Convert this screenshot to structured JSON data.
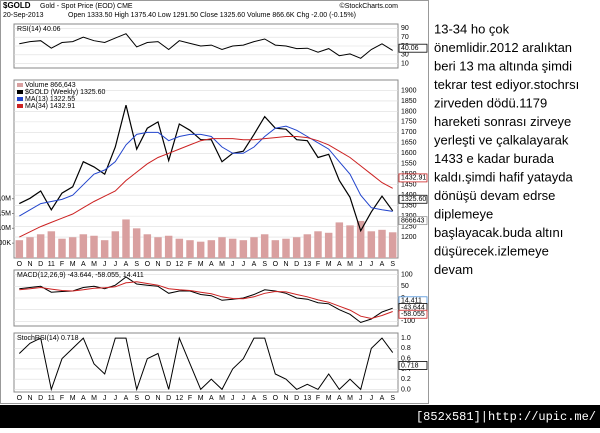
{
  "header": {
    "symbol": "$GOLD",
    "desc": "Gold - Spot Price (EOD) CME",
    "source": "©StockCharts.com",
    "date": "20-Sep-2013",
    "quote": "Open 1333.50 High 1375.40 Low 1291.50 Close 1325.60 Volume 866.6K Chg -2.00 (-0.15%)"
  },
  "chart_data": [
    {
      "type": "line",
      "title": "RSI(14) 40.06",
      "ylim": [
        0,
        100
      ],
      "yticks": [
        10,
        30,
        50,
        70,
        90
      ],
      "badges": [
        "40.06"
      ],
      "series": [
        {
          "name": "RSI(14)",
          "color": "#000000",
          "values": [
            55,
            60,
            62,
            45,
            58,
            60,
            70,
            62,
            58,
            68,
            78,
            48,
            58,
            60,
            42,
            62,
            56,
            50,
            52,
            42,
            50,
            52,
            60,
            66,
            52,
            50,
            44,
            45,
            36,
            44,
            28,
            32,
            22,
            42,
            55,
            40.06
          ]
        }
      ]
    },
    {
      "type": "line",
      "ylim": [
        1100,
        1950
      ],
      "yticks": [
        1200,
        1250,
        1300,
        1350,
        1400,
        1450,
        1500,
        1550,
        1600,
        1650,
        1700,
        1750,
        1800,
        1850,
        1900
      ],
      "y2lim": [
        0,
        6000000
      ],
      "y2ticks": [
        {
          "value": 500000,
          "label": "500K"
        },
        {
          "value": 1000000,
          "label": "1.0M"
        },
        {
          "value": 1500000,
          "label": "1.5M"
        },
        {
          "value": 2000000,
          "label": "2.0M"
        }
      ],
      "badges": [
        "1432.91",
        "1325.60",
        "866643"
      ],
      "categories": [
        "O",
        "N",
        "D",
        "11",
        "F",
        "M",
        "A",
        "M",
        "J",
        "J",
        "A",
        "S",
        "O",
        "N",
        "D",
        "12",
        "F",
        "M",
        "A",
        "M",
        "J",
        "J",
        "A",
        "S",
        "O",
        "N",
        "D",
        "13",
        "F",
        "M",
        "A",
        "M",
        "J",
        "J",
        "A",
        "S"
      ],
      "series": [
        {
          "name": "Volume 866,643",
          "color": "#d9a0a0",
          "bar": true,
          "axis": "y2",
          "values": [
            600000,
            700000,
            800000,
            900000,
            650000,
            700000,
            800000,
            750000,
            600000,
            900000,
            1300000,
            1000000,
            800000,
            700000,
            750000,
            650000,
            600000,
            550000,
            600000,
            700000,
            650000,
            600000,
            700000,
            800000,
            600000,
            650000,
            700000,
            800000,
            900000,
            850000,
            1200000,
            1100000,
            1250000,
            900000,
            950000,
            866643
          ]
        },
        {
          "name": "$GOLD (Weekly) 1325.60",
          "color": "#000000",
          "values": [
            1360,
            1385,
            1420,
            1330,
            1410,
            1440,
            1560,
            1535,
            1500,
            1630,
            1830,
            1620,
            1720,
            1750,
            1565,
            1740,
            1710,
            1665,
            1665,
            1560,
            1600,
            1610,
            1690,
            1775,
            1720,
            1715,
            1665,
            1660,
            1580,
            1595,
            1470,
            1390,
            1230,
            1320,
            1395,
            1325.6
          ]
        },
        {
          "name": "MA(13) 1322.55",
          "color": "#2244cc",
          "values": [
            1300,
            1330,
            1360,
            1370,
            1380,
            1400,
            1450,
            1500,
            1520,
            1560,
            1640,
            1690,
            1700,
            1700,
            1660,
            1680,
            1690,
            1690,
            1680,
            1630,
            1600,
            1600,
            1630,
            1680,
            1720,
            1730,
            1710,
            1680,
            1650,
            1620,
            1560,
            1500,
            1400,
            1340,
            1330,
            1322.55
          ]
        },
        {
          "name": "MA(34) 1432.91",
          "color": "#cc2222",
          "values": [
            1200,
            1225,
            1250,
            1270,
            1290,
            1310,
            1340,
            1370,
            1395,
            1420,
            1470,
            1510,
            1550,
            1580,
            1600,
            1620,
            1640,
            1660,
            1670,
            1670,
            1670,
            1665,
            1665,
            1670,
            1675,
            1680,
            1680,
            1675,
            1660,
            1640,
            1610,
            1580,
            1540,
            1500,
            1460,
            1432.91
          ]
        }
      ]
    },
    {
      "type": "line",
      "title": "MACD(12,26,9) -43.644, -58.055, 14.411",
      "ylim": [
        -120,
        120
      ],
      "yticks": [
        -100,
        -50,
        0,
        50,
        100
      ],
      "badges": [
        "14.411",
        "-43.644",
        "-58.055"
      ],
      "series": [
        {
          "name": "MACD",
          "color": "#000000",
          "values": [
            40,
            45,
            50,
            25,
            28,
            30,
            45,
            50,
            40,
            55,
            90,
            60,
            55,
            50,
            20,
            30,
            30,
            15,
            10,
            -10,
            -5,
            0,
            15,
            35,
            30,
            20,
            0,
            -5,
            -20,
            -25,
            -50,
            -70,
            -105,
            -90,
            -60,
            -43.644
          ]
        },
        {
          "name": "Signal",
          "color": "#cc2222",
          "values": [
            35,
            40,
            45,
            38,
            32,
            30,
            35,
            42,
            44,
            48,
            65,
            70,
            62,
            55,
            40,
            35,
            32,
            25,
            18,
            5,
            -2,
            -3,
            5,
            20,
            28,
            26,
            15,
            5,
            -8,
            -18,
            -35,
            -52,
            -78,
            -88,
            -75,
            -58.055
          ]
        }
      ]
    },
    {
      "type": "line",
      "title": "StochRSI(14) 0.718",
      "ylim": [
        -0.05,
        1.1
      ],
      "yticks": [
        {
          "value": 0,
          "label": "0.0"
        },
        0.2,
        0.4,
        0.6,
        0.8,
        {
          "value": 1,
          "label": "1.0"
        }
      ],
      "badges": [
        "0.718"
      ],
      "categories": [
        "O",
        "N",
        "D",
        "11",
        "F",
        "M",
        "A",
        "M",
        "J",
        "J",
        "A",
        "S",
        "O",
        "N",
        "D",
        "12",
        "F",
        "M",
        "A",
        "M",
        "J",
        "J",
        "A",
        "S",
        "O",
        "N",
        "D",
        "13",
        "F",
        "M",
        "A",
        "M",
        "J",
        "J",
        "A",
        "S"
      ],
      "series": [
        {
          "name": "StochRSI(14)",
          "color": "#000000",
          "values": [
            0.7,
            0.9,
            1,
            0,
            0.6,
            0.8,
            1,
            0.5,
            0.3,
            1,
            1,
            0,
            0.6,
            0.7,
            0,
            1,
            0.5,
            0,
            0.2,
            0,
            0.4,
            0.6,
            1,
            1,
            0.3,
            0.2,
            0,
            0.1,
            0,
            0.3,
            0,
            0.2,
            0,
            0.8,
            1,
            0.718
          ]
        }
      ]
    }
  ],
  "note": {
    "lines": [
      "13-34 ho çok",
      "önemlidir.2012 aralıktan",
      "beri 13 ma altında şimdi",
      "tekrar test ediyor.stochrsı",
      "zirveden dödü.1179",
      "hareketi sonrası zirveye",
      "yerleşti ve çalkalayarak",
      "1433 e kadar burada",
      "kaldı.şimdi hafif yatayda",
      "dönüşü devam edrse",
      "diplemeye",
      "başlayacak.buda altını",
      "düşürecek.izlemeye",
      "devam"
    ]
  },
  "footer": "[852x581]|http://upic.me/"
}
